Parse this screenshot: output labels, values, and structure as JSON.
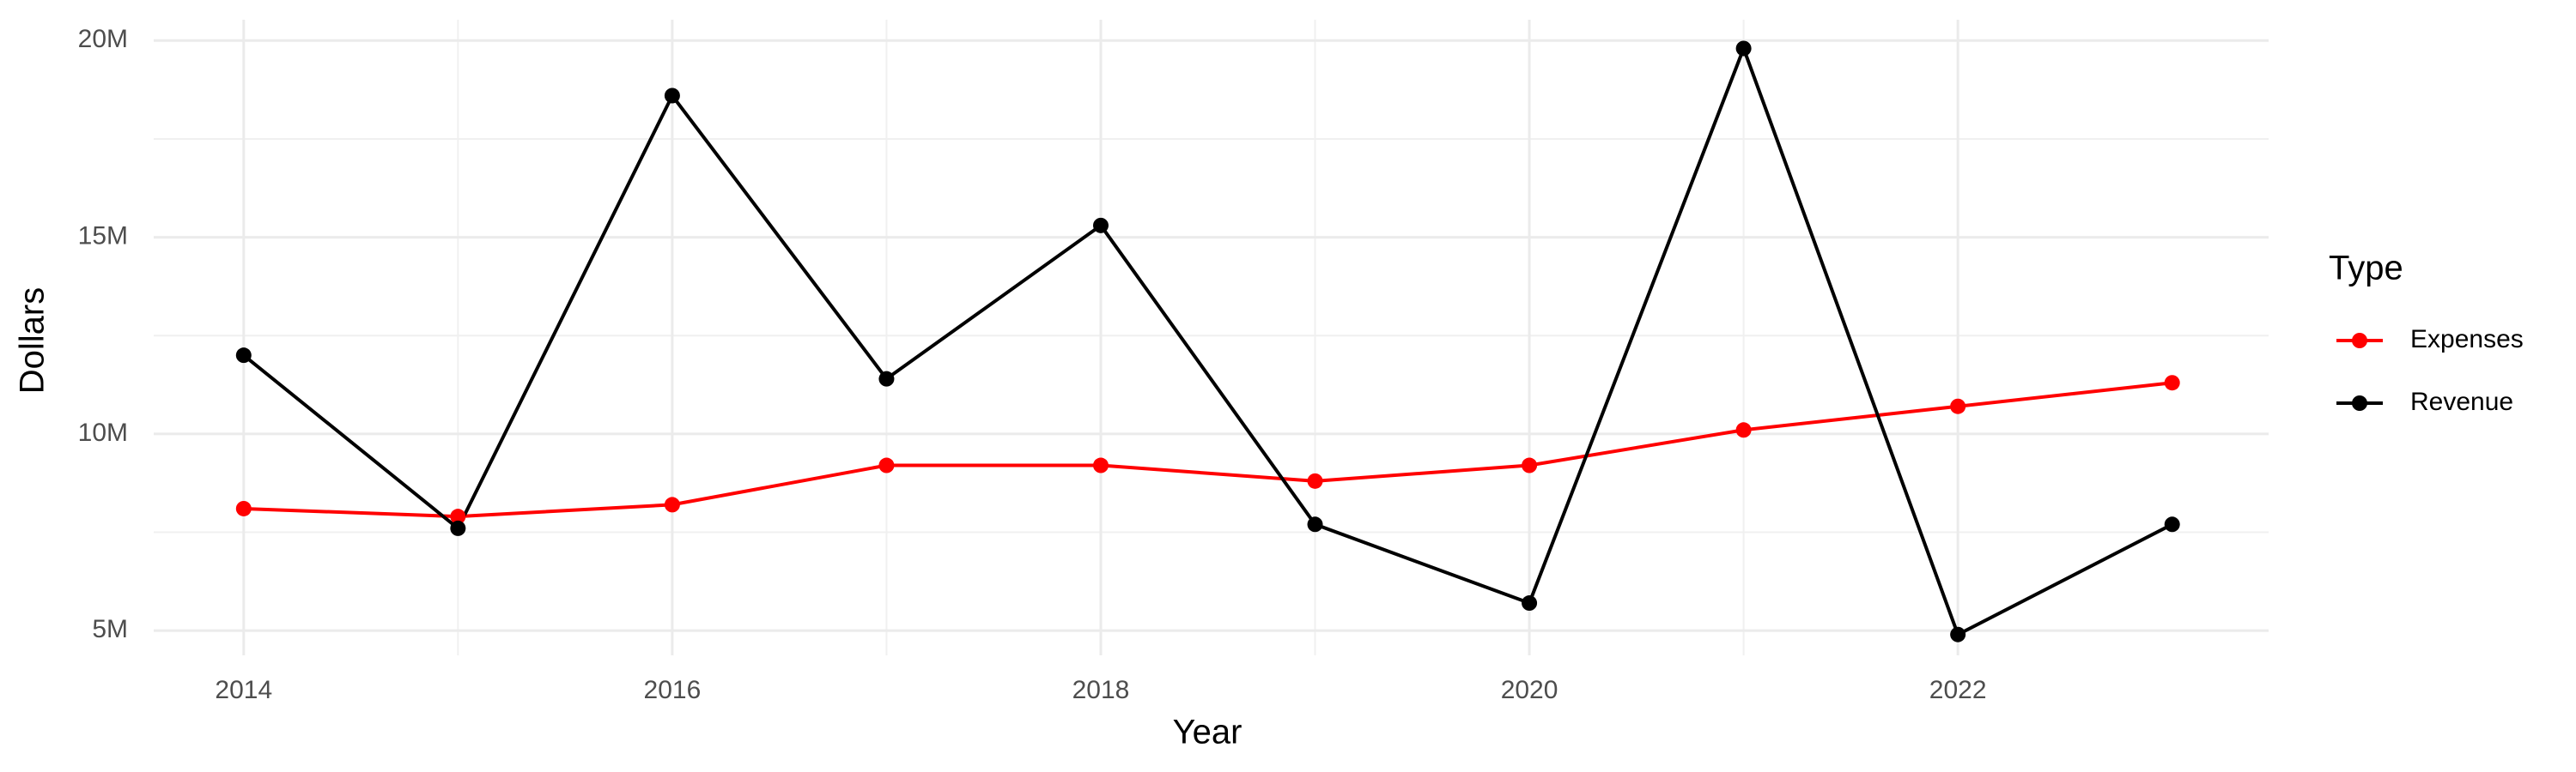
{
  "chart_data": {
    "type": "line",
    "x_label": "Year",
    "y_label": "Dollars",
    "legend_title": "Type",
    "legend_position": "right",
    "x": [
      2014,
      2015,
      2016,
      2017,
      2018,
      2019,
      2020,
      2021,
      2022,
      2023
    ],
    "series": [
      {
        "name": "Expenses",
        "color": "#ff0000",
        "values": [
          8100000,
          7900000,
          8200000,
          9200000,
          9200000,
          8800000,
          9200000,
          10100000,
          10700000,
          11300000
        ]
      },
      {
        "name": "Revenue",
        "color": "#000000",
        "values": [
          12000000,
          7600000,
          18600000,
          11400000,
          15300000,
          7700000,
          5700000,
          19800000,
          4900000,
          7700000
        ]
      }
    ],
    "xlim": [
      2013.58,
      2023.45
    ],
    "xticks": [
      2014,
      2016,
      2018,
      2020,
      2022
    ],
    "ylim": [
      4370000,
      20530000
    ],
    "yticks": [
      {
        "value": 5000000,
        "label": "5M"
      },
      {
        "value": 10000000,
        "label": "10M"
      },
      {
        "value": 15000000,
        "label": "15M"
      },
      {
        "value": 20000000,
        "label": "20M"
      }
    ],
    "grid": true,
    "minor_grid": true
  }
}
